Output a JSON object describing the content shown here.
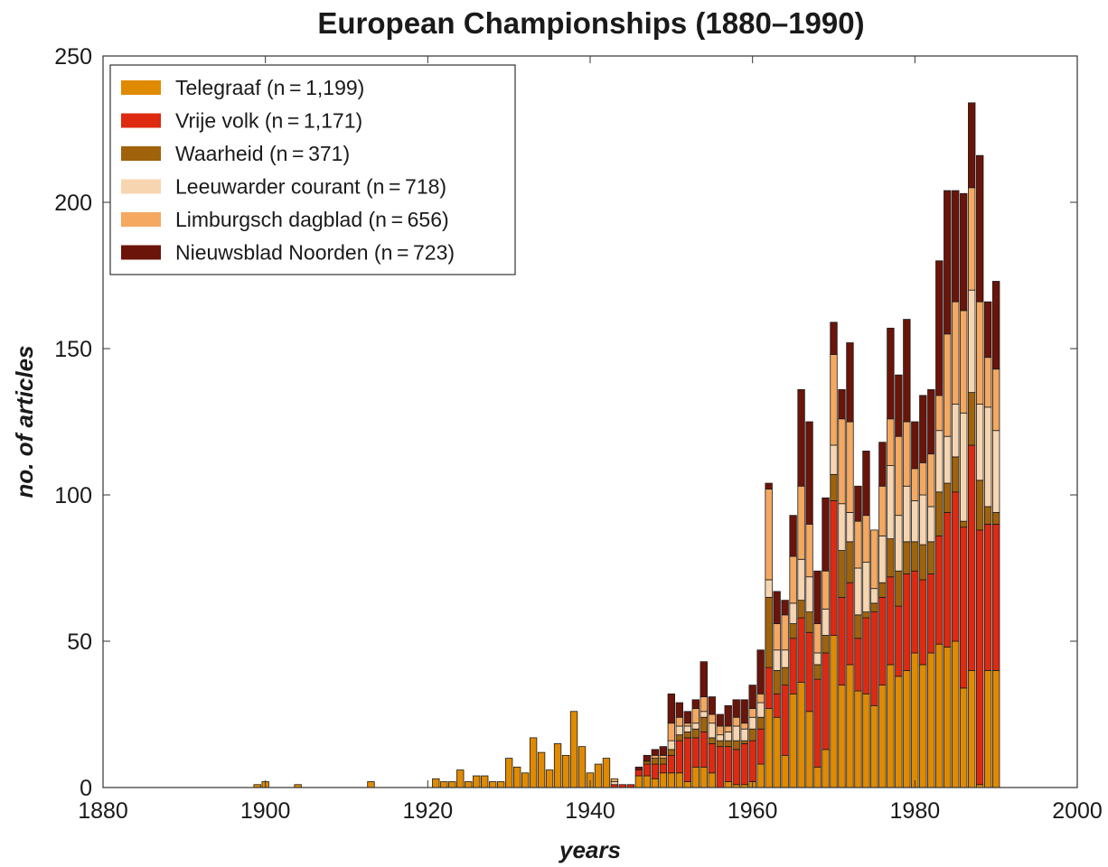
{
  "chart_data": {
    "type": "bar",
    "stacked": true,
    "title": "European Championships (1880–1990)",
    "xlabel": "years",
    "ylabel": "no. of articles",
    "xlim": [
      1880,
      2000
    ],
    "ylim": [
      0,
      250
    ],
    "xticks": [
      1880,
      1900,
      1920,
      1940,
      1960,
      1980,
      2000
    ],
    "yticks": [
      0,
      50,
      100,
      150,
      200,
      250
    ],
    "grid": false,
    "legend_position": "top-left",
    "x": [
      1899,
      1900,
      1904,
      1913,
      1921,
      1922,
      1923,
      1924,
      1925,
      1926,
      1927,
      1928,
      1929,
      1930,
      1931,
      1932,
      1933,
      1934,
      1935,
      1936,
      1937,
      1938,
      1939,
      1940,
      1941,
      1942,
      1943,
      1944,
      1945,
      1946,
      1947,
      1948,
      1949,
      1950,
      1951,
      1952,
      1953,
      1954,
      1955,
      1956,
      1957,
      1958,
      1959,
      1960,
      1961,
      1962,
      1963,
      1964,
      1965,
      1966,
      1967,
      1968,
      1969,
      1970,
      1971,
      1972,
      1973,
      1974,
      1975,
      1976,
      1977,
      1978,
      1979,
      1980,
      1981,
      1982,
      1983,
      1984,
      1985,
      1986,
      1987,
      1988,
      1989,
      1990
    ],
    "series": [
      {
        "name": "Telegraaf (n = 1,199)",
        "color": "#e08a00",
        "values": [
          1,
          2,
          1,
          2,
          3,
          2,
          2,
          6,
          2,
          4,
          4,
          2,
          2,
          10,
          7,
          5,
          17,
          12,
          6,
          15,
          11,
          26,
          14,
          5,
          8,
          10,
          0,
          0,
          0,
          4,
          4,
          3,
          5,
          5,
          5,
          2,
          7,
          7,
          5,
          0,
          2,
          1,
          1,
          2,
          8,
          27,
          24,
          11,
          32,
          36,
          26,
          7,
          13,
          52,
          35,
          42,
          33,
          32,
          28,
          35,
          42,
          38,
          40,
          46,
          42,
          46,
          49,
          48,
          50,
          34,
          40,
          1,
          40,
          40
        ]
      },
      {
        "name": "Vrije volk (n = 1,171)",
        "color": "#dd2a10",
        "values": [
          0,
          0,
          0,
          0,
          0,
          0,
          0,
          0,
          0,
          0,
          0,
          0,
          0,
          0,
          0,
          0,
          0,
          0,
          0,
          0,
          0,
          0,
          0,
          0,
          0,
          0,
          1,
          1,
          1,
          2,
          4,
          5,
          3,
          6,
          11,
          15,
          10,
          12,
          10,
          14,
          12,
          12,
          14,
          14,
          12,
          14,
          8,
          24,
          19,
          22,
          27,
          30,
          33,
          46,
          30,
          28,
          18,
          26,
          32,
          30,
          30,
          24,
          33,
          28,
          29,
          27,
          37,
          46,
          51,
          55,
          77,
          87,
          50,
          50
        ]
      },
      {
        "name": "Waarheid (n = 371)",
        "color": "#a0620a",
        "values": [
          0,
          0,
          0,
          0,
          0,
          0,
          0,
          0,
          0,
          0,
          0,
          0,
          0,
          0,
          0,
          0,
          0,
          0,
          0,
          0,
          0,
          0,
          0,
          0,
          0,
          0,
          0,
          0,
          0,
          0,
          1,
          2,
          2,
          2,
          2,
          2,
          3,
          5,
          2,
          2,
          2,
          3,
          1,
          4,
          4,
          24,
          8,
          6,
          5,
          6,
          7,
          5,
          6,
          9,
          16,
          14,
          8,
          2,
          3,
          5,
          13,
          12,
          11,
          10,
          12,
          11,
          15,
          10,
          12,
          2,
          18,
          17,
          6,
          4
        ]
      },
      {
        "name": "Leeuwarder courant (n = 718)",
        "color": "#f7d5b0",
        "values": [
          0,
          0,
          0,
          0,
          0,
          0,
          0,
          0,
          0,
          0,
          0,
          0,
          0,
          0,
          0,
          0,
          0,
          0,
          0,
          0,
          0,
          0,
          0,
          0,
          0,
          0,
          1,
          0,
          0,
          0,
          0,
          0,
          0,
          3,
          3,
          2,
          2,
          2,
          5,
          2,
          3,
          5,
          4,
          4,
          5,
          6,
          7,
          6,
          7,
          14,
          12,
          4,
          9,
          10,
          16,
          10,
          16,
          17,
          5,
          16,
          25,
          19,
          19,
          14,
          17,
          12,
          21,
          16,
          18,
          37,
          35,
          26,
          34,
          28
        ]
      },
      {
        "name": "Limburgsch dagblad (n = 656)",
        "color": "#f4a860",
        "values": [
          0,
          0,
          0,
          0,
          0,
          0,
          0,
          0,
          0,
          0,
          0,
          0,
          0,
          0,
          0,
          0,
          0,
          0,
          0,
          0,
          0,
          0,
          0,
          0,
          0,
          0,
          1,
          0,
          0,
          0,
          0,
          1,
          1,
          6,
          3,
          1,
          5,
          5,
          3,
          3,
          2,
          3,
          2,
          3,
          3,
          31,
          9,
          12,
          16,
          25,
          18,
          10,
          13,
          31,
          29,
          31,
          16,
          16,
          20,
          17,
          16,
          27,
          22,
          11,
          11,
          18,
          12,
          35,
          35,
          35,
          35,
          35,
          17,
          21
        ]
      },
      {
        "name": "Nieuwsblad Noorden (n = 723)",
        "color": "#6b140a",
        "values": [
          0,
          0,
          0,
          0,
          0,
          0,
          0,
          0,
          0,
          0,
          0,
          0,
          0,
          0,
          0,
          0,
          0,
          0,
          0,
          0,
          0,
          0,
          0,
          0,
          0,
          0,
          0,
          0,
          0,
          1,
          2,
          2,
          3,
          10,
          5,
          4,
          3,
          12,
          6,
          4,
          7,
          6,
          8,
          8,
          15,
          2,
          11,
          5,
          14,
          33,
          35,
          18,
          25,
          11,
          10,
          27,
          12,
          22,
          0,
          15,
          31,
          21,
          35,
          16,
          23,
          22,
          46,
          49,
          38,
          40,
          29,
          50,
          19,
          30
        ]
      }
    ]
  }
}
